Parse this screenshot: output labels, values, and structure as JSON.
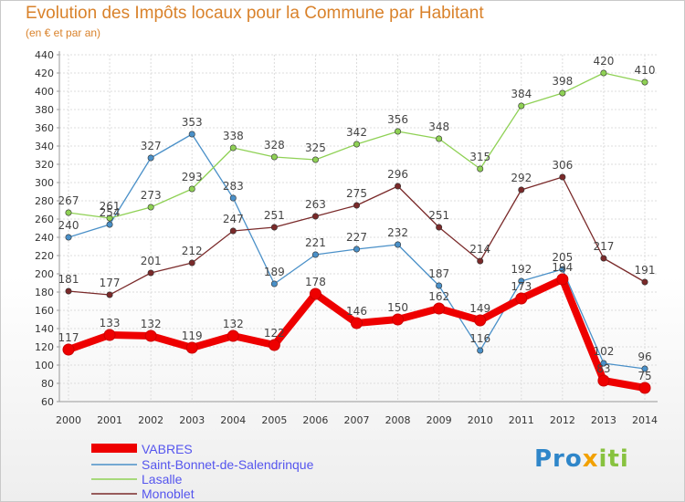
{
  "title": "Evolution des Impôts locaux pour la Commune par Habitant",
  "subtitle": "(en € et par an)",
  "logo": {
    "p1": "Pro",
    "p2": "x",
    "p3": "iti"
  },
  "chart_data": {
    "type": "line",
    "title": "Evolution des Impôts locaux pour la Commune par Habitant",
    "ylabel": "(en € et par an)",
    "xlabel": "",
    "ylim": [
      60,
      440
    ],
    "ytick_step": 20,
    "grid": true,
    "legend_position": "bottom-left",
    "x": [
      "2000",
      "2001",
      "2002",
      "2003",
      "2004",
      "2005",
      "2006",
      "2007",
      "2008",
      "2009",
      "2010",
      "2011",
      "2012",
      "2013",
      "2014"
    ],
    "series": [
      {
        "name": "VABRES",
        "color": "#ee0000",
        "values": [
          117,
          133,
          132,
          119,
          132,
          122,
          178,
          146,
          150,
          162,
          149,
          173,
          194,
          83,
          75
        ],
        "labels": [
          "117",
          "133",
          "132",
          "119",
          "132",
          "122",
          "178",
          "146",
          "150",
          "162",
          "149",
          "173",
          "194",
          "83",
          "75"
        ]
      },
      {
        "name": "Saint-Bonnet-de-Salendrinque",
        "color": "#4a90c8",
        "values": [
          240,
          254,
          327,
          353,
          283,
          189,
          221,
          227,
          232,
          187,
          116,
          192,
          205,
          102,
          96
        ],
        "labels": [
          "240",
          "254",
          "327",
          "353",
          "283",
          "189",
          "221",
          "227",
          "232",
          "187",
          "116",
          "192",
          "205",
          "102",
          "96"
        ]
      },
      {
        "name": "Lasalle",
        "color": "#8fd155",
        "values": [
          267,
          261,
          273,
          293,
          338,
          328,
          325,
          342,
          356,
          348,
          315,
          384,
          398,
          420,
          410
        ],
        "labels": [
          "267",
          "261",
          "273",
          "293",
          "338",
          "328",
          "325",
          "342",
          "356",
          "348",
          "315",
          "384",
          "398",
          "420",
          "410"
        ]
      },
      {
        "name": "Monoblet",
        "color": "#7a2a2a",
        "values": [
          181,
          177,
          201,
          212,
          247,
          251,
          263,
          275,
          296,
          251,
          214,
          292,
          306,
          217,
          191
        ],
        "labels": [
          "181",
          "177",
          "201",
          "212",
          "247",
          "251",
          "263",
          "275",
          "296",
          "251",
          "214",
          "292",
          "306",
          "217",
          "191"
        ]
      }
    ]
  }
}
